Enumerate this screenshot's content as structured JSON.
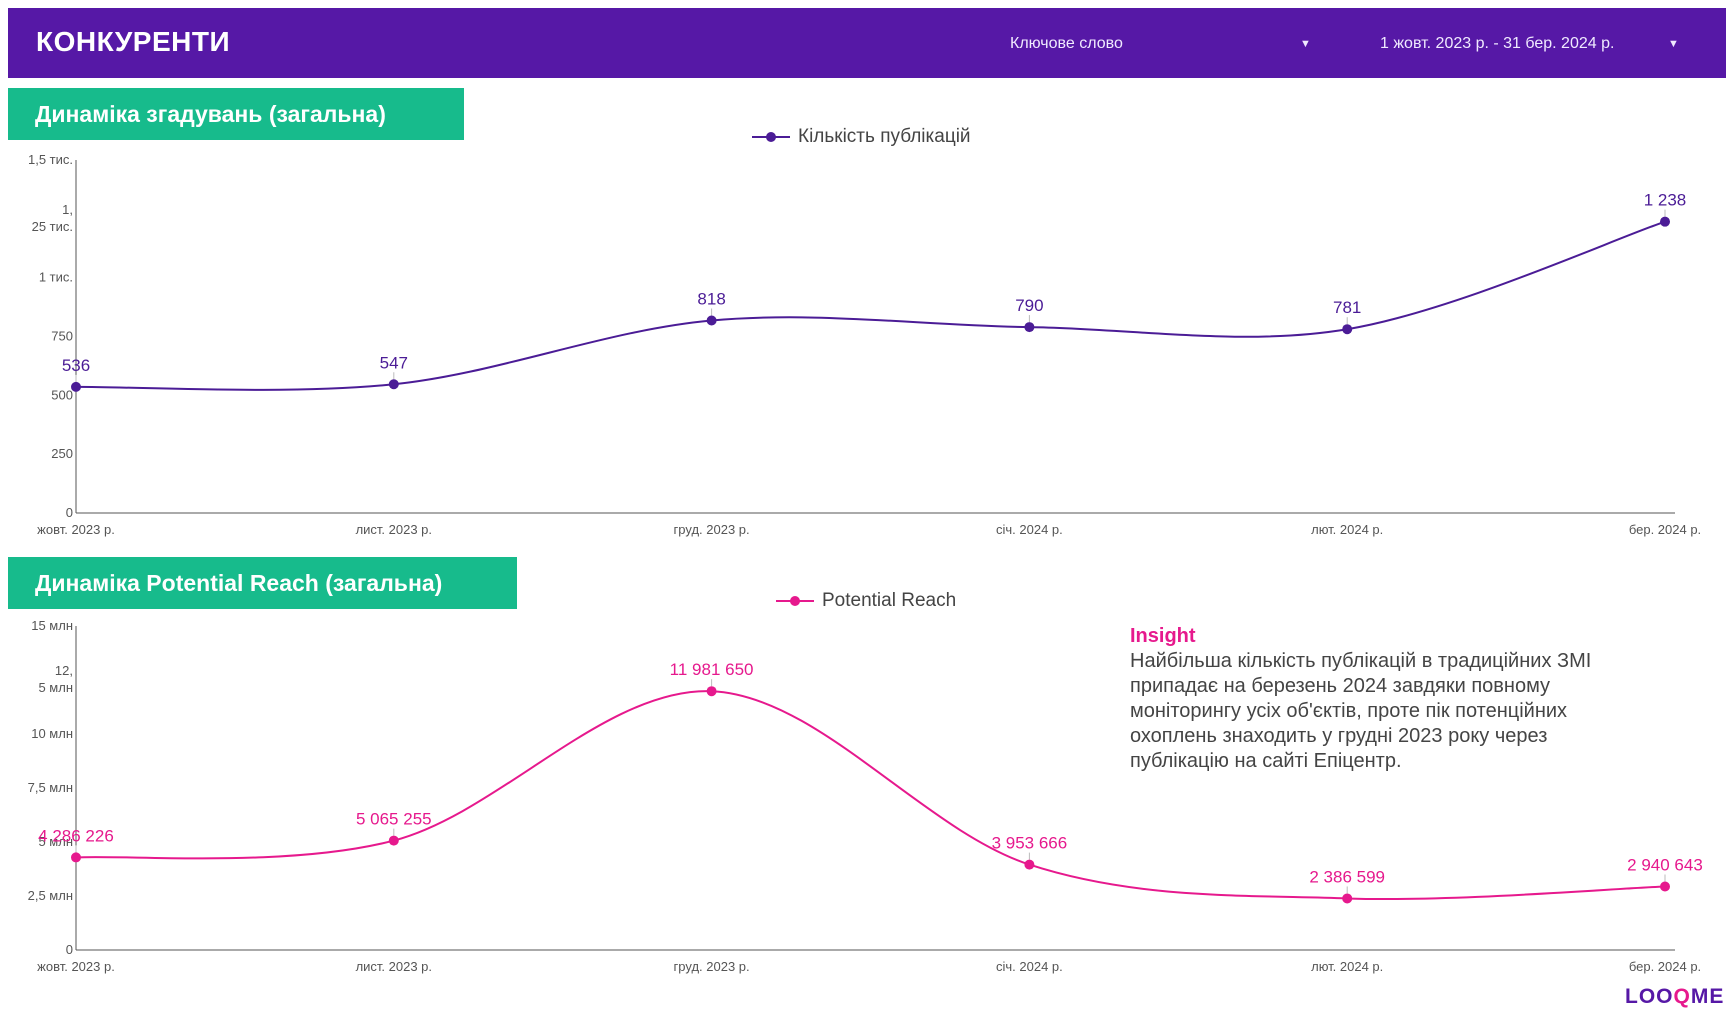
{
  "header": {
    "title": "КОНКУРЕНТИ",
    "keyword_label": "Ключове слово",
    "date_range": "1 жовт. 2023 р. - 31 бер. 2024 р."
  },
  "colors": {
    "header_bg": "#5618a6",
    "section_bg": "#17bb8c",
    "series1": "#4b1c96",
    "series2": "#e6198d"
  },
  "chart_data": [
    {
      "type": "line",
      "title": "Динаміка згадувань (загальна)",
      "legend": "top-center",
      "categories": [
        "жовт. 2023 р.",
        "лист. 2023 р.",
        "груд. 2023 р.",
        "січ. 2024 р.",
        "лют. 2024 р.",
        "бер. 2024 р."
      ],
      "series": [
        {
          "name": "Кількість публікацій",
          "values": [
            536,
            547,
            818,
            790,
            781,
            1238
          ],
          "labels": [
            "536",
            "547",
            "818",
            "790",
            "781",
            "1 238"
          ]
        }
      ],
      "ylim": [
        0,
        1500
      ],
      "yticks": [
        {
          "value": 0,
          "label": "0"
        },
        {
          "value": 250,
          "label": "250"
        },
        {
          "value": 500,
          "label": "500"
        },
        {
          "value": 750,
          "label": "750"
        },
        {
          "value": 1000,
          "label": "1 тис."
        },
        {
          "value": 1250,
          "label": "1,\n25 тис."
        },
        {
          "value": 1500,
          "label": "1,5 тис."
        }
      ]
    },
    {
      "type": "line",
      "title": "Динаміка Potential Reach (загальна)",
      "legend": "top-center",
      "categories": [
        "жовт. 2023 р.",
        "лист. 2023 р.",
        "груд. 2023 р.",
        "січ. 2024 р.",
        "лют. 2024 р.",
        "бер. 2024 р."
      ],
      "series": [
        {
          "name": "Potential Reach",
          "values": [
            4286226,
            5065255,
            11981650,
            3953666,
            2386599,
            2940643
          ],
          "labels": [
            "4 286 226",
            "5 065 255",
            "11 981 650",
            "3 953 666",
            "2 386 599",
            "2 940 643"
          ]
        }
      ],
      "ylim": [
        0,
        15000000
      ],
      "yticks": [
        {
          "value": 0,
          "label": "0"
        },
        {
          "value": 2500000,
          "label": "2,5 млн"
        },
        {
          "value": 5000000,
          "label": "5 млн"
        },
        {
          "value": 7500000,
          "label": "7,5 млн"
        },
        {
          "value": 10000000,
          "label": "10 млн"
        },
        {
          "value": 12500000,
          "label": "12,\n5 млн"
        },
        {
          "value": 15000000,
          "label": "15 млн"
        }
      ]
    }
  ],
  "insight": {
    "title": "Insight",
    "text": "Найбільша кількість публікацій в традиційних ЗМІ припадає на березень 2024 завдяки повному моніторингу усіх об'єктів, проте пік потенційних охоплень знаходить у грудні 2023 року через публікацію на сайті Епіцентр."
  },
  "logo": {
    "part1": "LOO",
    "part2": "Q",
    "part3": "ME"
  }
}
